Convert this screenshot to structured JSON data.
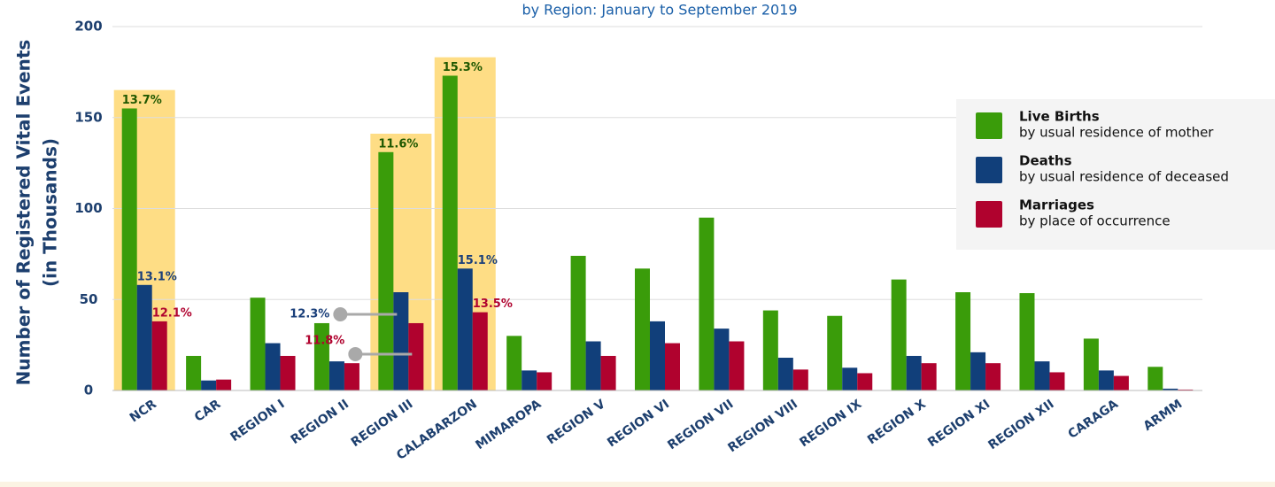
{
  "chart_data": {
    "type": "bar",
    "subtitle": "by Region: January to September 2019",
    "ylabel": [
      "Number of Registered Vital Events",
      "(in Thousands)"
    ],
    "categories": [
      "NCR",
      "CAR",
      "REGION I",
      "REGION II",
      "REGION III",
      "CALABARZON",
      "MIMAROPA",
      "REGION V",
      "REGION VI",
      "REGION VII",
      "REGION VIII",
      "REGION IX",
      "REGION X",
      "REGION XI",
      "REGION XII",
      "CARAGA",
      "ARMM"
    ],
    "series": [
      {
        "name": "Live Births",
        "description": "by usual residence of mother",
        "color": "#3a9c0a",
        "label_color": "#1f5800",
        "values": [
          155,
          19,
          51,
          37,
          131,
          173,
          30,
          74,
          67,
          95,
          44,
          41,
          61,
          54,
          53.5,
          28.5,
          13
        ],
        "share_labels": [
          "13.7%",
          null,
          null,
          null,
          "11.6%",
          "15.3%",
          null,
          null,
          null,
          null,
          null,
          null,
          null,
          null,
          null,
          null,
          null
        ]
      },
      {
        "name": "Deaths",
        "description": "by usual residence of deceased",
        "color": "#113f7a",
        "label_color": "#1a3f7a",
        "values": [
          58,
          5.5,
          26,
          16,
          54,
          67,
          11,
          27,
          38,
          34,
          18,
          12.5,
          19,
          21,
          16,
          11,
          1
        ],
        "share_labels": [
          "13.1%",
          null,
          null,
          null,
          "12.3%",
          "15.1%",
          null,
          null,
          null,
          null,
          null,
          null,
          null,
          null,
          null,
          null,
          null
        ]
      },
      {
        "name": "Marriages",
        "description": "by place of occurrence",
        "color": "#b0022e",
        "label_color": "#b0022e",
        "values": [
          38,
          6,
          19,
          15,
          37,
          43,
          10,
          19,
          26,
          27,
          11.5,
          9.5,
          15,
          15,
          10,
          8,
          0.5
        ],
        "share_labels": [
          "12.1%",
          null,
          null,
          null,
          "11.8%",
          "13.5%",
          null,
          null,
          null,
          null,
          null,
          null,
          null,
          null,
          null,
          null,
          null
        ]
      }
    ],
    "ylim": [
      0,
      200
    ],
    "yticks": [
      0,
      50,
      100,
      150,
      200
    ],
    "grid": true,
    "highlight_color": "#fedd85"
  }
}
